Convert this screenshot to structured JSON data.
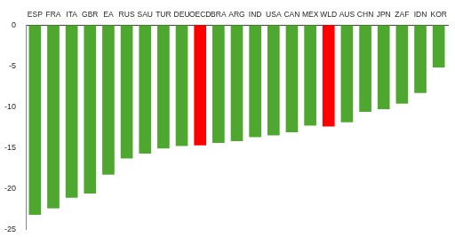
{
  "chart_data": {
    "type": "bar",
    "categories": [
      "ESP",
      "FRA",
      "ITA",
      "GBR",
      "EA",
      "RUS",
      "SAU",
      "TUR",
      "DEU",
      "OECD",
      "BRA",
      "ARG",
      "IND",
      "USA",
      "CAN",
      "MEX",
      "WLD",
      "AUS",
      "CHN",
      "JPN",
      "ZAF",
      "IDN",
      "KOR"
    ],
    "values": [
      -23.2,
      -22.4,
      -21.1,
      -20.6,
      -18.3,
      -16.3,
      -15.7,
      -15.1,
      -14.8,
      -14.7,
      -14.4,
      -14.2,
      -13.7,
      -13.5,
      -13.1,
      -12.3,
      -12.4,
      -11.9,
      -10.6,
      -10.3,
      -9.6,
      -8.3,
      -5.2
    ],
    "colors": [
      "#4ea72e",
      "#4ea72e",
      "#4ea72e",
      "#4ea72e",
      "#4ea72e",
      "#4ea72e",
      "#4ea72e",
      "#4ea72e",
      "#4ea72e",
      "#ff0000",
      "#4ea72e",
      "#4ea72e",
      "#4ea72e",
      "#4ea72e",
      "#4ea72e",
      "#4ea72e",
      "#ff0000",
      "#4ea72e",
      "#4ea72e",
      "#4ea72e",
      "#4ea72e",
      "#4ea72e",
      "#4ea72e"
    ],
    "ylim": [
      -25,
      0
    ],
    "yticks": [
      -25,
      -20,
      -15,
      -10,
      -5,
      0
    ],
    "grid": false
  }
}
